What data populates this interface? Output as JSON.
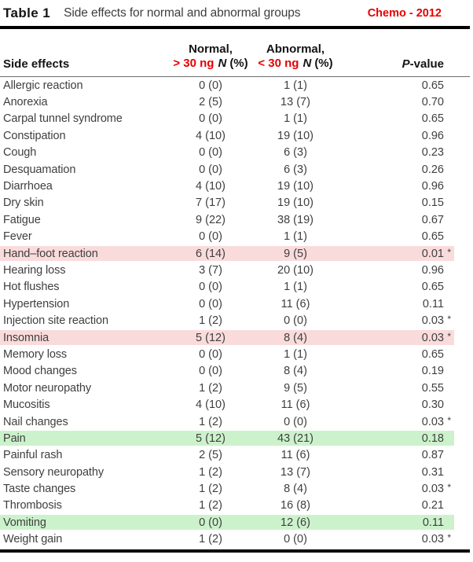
{
  "header": {
    "table_label": "Table 1",
    "title": "Side effects for normal and abnormal groups",
    "annotation": "Chemo - 2012"
  },
  "columns": {
    "side_effects": "Side effects",
    "normal_line1": "Normal,",
    "normal_threshold": "> 30 ng",
    "abnormal_line1": "Abnormal,",
    "abnormal_threshold": "< 30 ng",
    "n_label": "N",
    "pct_label": "(%)",
    "p_italic": "P",
    "p_rest": "-value"
  },
  "colors": {
    "accent_red": "#e60000",
    "highlight_pink": "#fadbdb",
    "highlight_green": "#ccf2cc",
    "body_text": "#3f3f3f",
    "header_text": "#141414",
    "rule_black": "#000000"
  },
  "rows": [
    {
      "name": "Allergic reaction",
      "normal": "0 (0)",
      "abnormal": "1 (1)",
      "pvalue": "0.65",
      "star": "",
      "highlight": "none"
    },
    {
      "name": "Anorexia",
      "normal": "2 (5)",
      "abnormal": "13 (7)",
      "pvalue": "0.70",
      "star": "",
      "highlight": "none"
    },
    {
      "name": "Carpal tunnel syndrome",
      "normal": "0 (0)",
      "abnormal": "1 (1)",
      "pvalue": "0.65",
      "star": "",
      "highlight": "none"
    },
    {
      "name": "Constipation",
      "normal": "4 (10)",
      "abnormal": "19 (10)",
      "pvalue": "0.96",
      "star": "",
      "highlight": "none"
    },
    {
      "name": "Cough",
      "normal": "0 (0)",
      "abnormal": "6 (3)",
      "pvalue": "0.23",
      "star": "",
      "highlight": "none"
    },
    {
      "name": "Desquamation",
      "normal": "0 (0)",
      "abnormal": "6 (3)",
      "pvalue": "0.26",
      "star": "",
      "highlight": "none"
    },
    {
      "name": "Diarrhoea",
      "normal": "4 (10)",
      "abnormal": "19 (10)",
      "pvalue": "0.96",
      "star": "",
      "highlight": "none"
    },
    {
      "name": "Dry skin",
      "normal": "7 (17)",
      "abnormal": "19 (10)",
      "pvalue": "0.15",
      "star": "",
      "highlight": "none"
    },
    {
      "name": "Fatigue",
      "normal": "9 (22)",
      "abnormal": "38 (19)",
      "pvalue": "0.67",
      "star": "",
      "highlight": "none"
    },
    {
      "name": "Fever",
      "normal": "0 (0)",
      "abnormal": "1 (1)",
      "pvalue": "0.65",
      "star": "",
      "highlight": "none"
    },
    {
      "name": "Hand–foot reaction",
      "normal": "6 (14)",
      "abnormal": "9 (5)",
      "pvalue": "0.01",
      "star": "*",
      "highlight": "pink"
    },
    {
      "name": "Hearing loss",
      "normal": "3 (7)",
      "abnormal": "20 (10)",
      "pvalue": "0.96",
      "star": "",
      "highlight": "none"
    },
    {
      "name": "Hot flushes",
      "normal": "0 (0)",
      "abnormal": "1 (1)",
      "pvalue": "0.65",
      "star": "",
      "highlight": "none"
    },
    {
      "name": "Hypertension",
      "normal": "0 (0)",
      "abnormal": "11 (6)",
      "pvalue": "0.11",
      "star": "",
      "highlight": "none"
    },
    {
      "name": "Injection site reaction",
      "normal": "1 (2)",
      "abnormal": "0 (0)",
      "pvalue": "0.03",
      "star": "*",
      "highlight": "none"
    },
    {
      "name": "Insomnia",
      "normal": "5 (12)",
      "abnormal": "8 (4)",
      "pvalue": "0.03",
      "star": "*",
      "highlight": "pink"
    },
    {
      "name": "Memory loss",
      "normal": "0 (0)",
      "abnormal": "1 (1)",
      "pvalue": "0.65",
      "star": "",
      "highlight": "none"
    },
    {
      "name": "Mood changes",
      "normal": "0 (0)",
      "abnormal": "8 (4)",
      "pvalue": "0.19",
      "star": "",
      "highlight": "none"
    },
    {
      "name": "Motor neuropathy",
      "normal": "1 (2)",
      "abnormal": "9 (5)",
      "pvalue": "0.55",
      "star": "",
      "highlight": "none"
    },
    {
      "name": "Mucositis",
      "normal": "4 (10)",
      "abnormal": "11 (6)",
      "pvalue": "0.30",
      "star": "",
      "highlight": "none"
    },
    {
      "name": "Nail changes",
      "normal": "1 (2)",
      "abnormal": "0 (0)",
      "pvalue": "0.03",
      "star": "*",
      "highlight": "none"
    },
    {
      "name": "Pain",
      "normal": "5 (12)",
      "abnormal": "43 (21)",
      "pvalue": "0.18",
      "star": "",
      "highlight": "green"
    },
    {
      "name": "Painful rash",
      "normal": "2 (5)",
      "abnormal": "11 (6)",
      "pvalue": "0.87",
      "star": "",
      "highlight": "none"
    },
    {
      "name": "Sensory neuropathy",
      "normal": "1 (2)",
      "abnormal": "13 (7)",
      "pvalue": "0.31",
      "star": "",
      "highlight": "none"
    },
    {
      "name": "Taste changes",
      "normal": "1 (2)",
      "abnormal": "8 (4)",
      "pvalue": "0.03",
      "star": "*",
      "highlight": "none"
    },
    {
      "name": "Thrombosis",
      "normal": "1 (2)",
      "abnormal": "16 (8)",
      "pvalue": "0.21",
      "star": "",
      "highlight": "none"
    },
    {
      "name": "Vomiting",
      "normal": "0 (0)",
      "abnormal": "12 (6)",
      "pvalue": "0.11",
      "star": "",
      "highlight": "green"
    },
    {
      "name": "Weight gain",
      "normal": "1 (2)",
      "abnormal": "0 (0)",
      "pvalue": "0.03",
      "star": "*",
      "highlight": "none"
    }
  ]
}
